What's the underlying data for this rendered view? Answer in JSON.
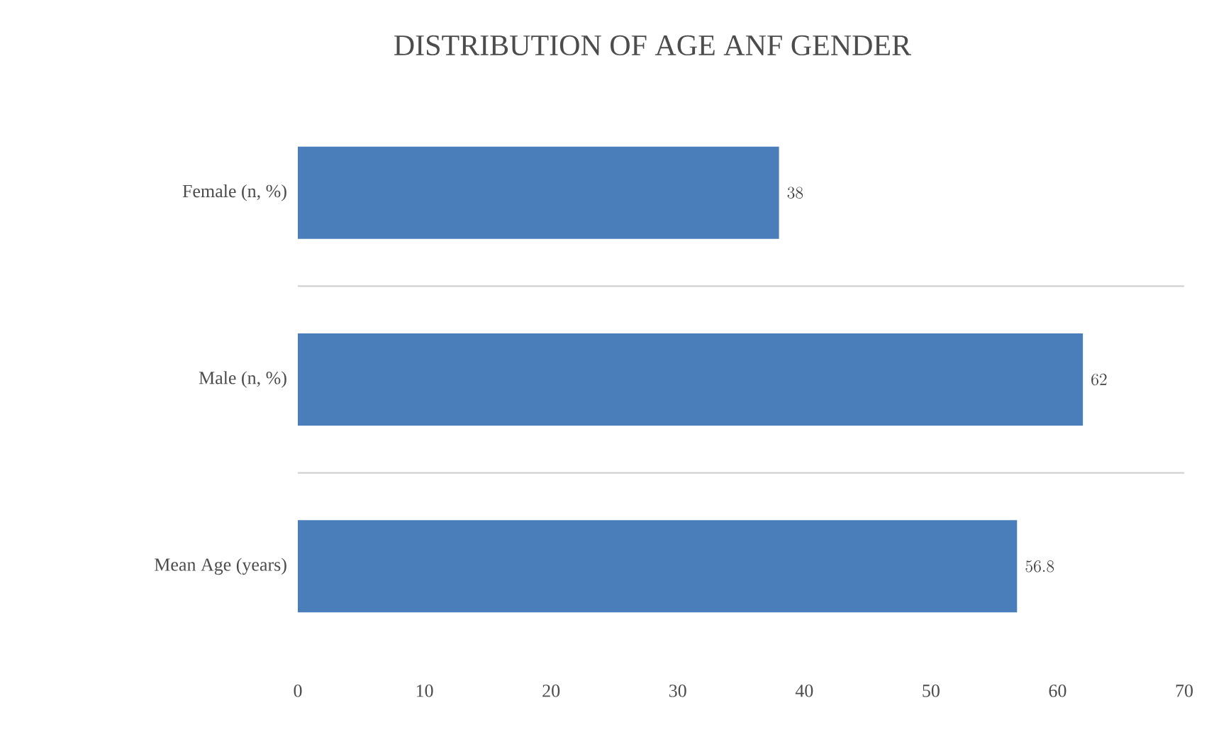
{
  "chart_data": {
    "type": "bar",
    "orientation": "horizontal",
    "title": "DISTRIBUTION OF AGE ANF GENDER",
    "categories": [
      "Female (n, %)",
      "Male (n, %)",
      "Mean Age (years)"
    ],
    "values": [
      38,
      62,
      56.8
    ],
    "color": "#4a7ebb",
    "xlim": [
      0,
      70
    ],
    "xticks": [
      0,
      10,
      20,
      30,
      40,
      50,
      60,
      70
    ],
    "grid": "y",
    "data_labels": true
  }
}
